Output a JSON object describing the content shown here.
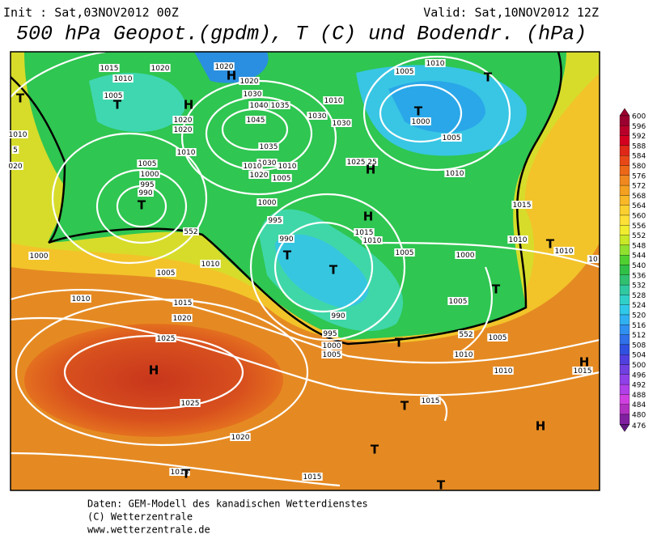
{
  "header": {
    "init": "Init : Sat,03NOV2012 00Z",
    "valid": "Valid: Sat,10NOV2012 12Z",
    "title": "500 hPa Geopot.(gpdm), T (C) und Bodendr. (hPa)"
  },
  "map": {
    "isobar_labels": [
      "1015",
      "1020",
      "1010",
      "1005",
      "1020",
      "1020",
      "1010",
      "1005",
      "1000",
      "995",
      "990",
      "1020",
      "1020",
      "1030",
      "1040",
      "1035",
      "1045",
      "1035",
      "1030",
      "1010",
      "1020",
      "1010",
      "1005",
      "1000",
      "995",
      "990",
      "1030",
      "1030",
      "1010",
      "1025",
      "25",
      "1015",
      "1010",
      "1005",
      "1000",
      "1010",
      "1005",
      "1000",
      "1005",
      "1010",
      "1015",
      "1010",
      "1010",
      "10",
      "1005",
      "1005",
      "1010",
      "1010",
      "1015",
      "990",
      "995",
      "1000",
      "1005",
      "1015",
      "1010",
      "5",
      "020",
      "1010",
      "1000",
      "1005",
      "1010",
      "1015",
      "1020",
      "1025",
      "1025",
      "1020",
      "1015",
      "1015",
      "552",
      "552"
    ],
    "pressure_centers": [
      "T",
      "T",
      "H",
      "T",
      "H",
      "T",
      "T",
      "H",
      "H",
      "T",
      "T",
      "T",
      "T",
      "T",
      "H",
      "T",
      "T",
      "T",
      "T",
      "H",
      "H"
    ]
  },
  "legend": {
    "values": [
      600,
      596,
      592,
      588,
      584,
      580,
      576,
      572,
      568,
      564,
      560,
      556,
      552,
      548,
      544,
      540,
      536,
      532,
      528,
      524,
      520,
      516,
      512,
      508,
      504,
      500,
      496,
      492,
      488,
      484,
      480,
      476
    ]
  },
  "footer": [
    "Daten: GEM-Modell des kanadischen Wetterdienstes",
    "(C) Wetterzentrale",
    "www.wetterzentrale.de"
  ]
}
